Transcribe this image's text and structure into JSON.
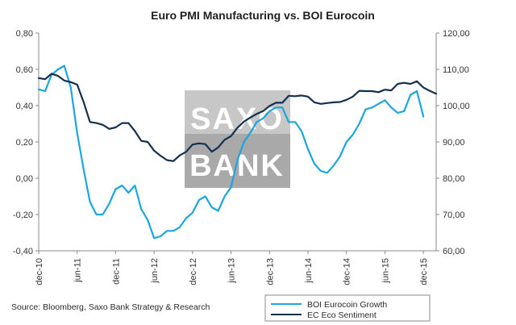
{
  "chart_data": {
    "type": "line",
    "title": "Euro PMI Manufacturing vs. BOI Eurocoin",
    "source": "Source: Bloomberg, Saxo Bank Strategy & Research",
    "watermark": [
      "SAXO",
      "BANK"
    ],
    "x_ticks": [
      "dec-10",
      "jun-11",
      "dec-11",
      "jun-12",
      "dec-12",
      "jun-13",
      "dec-13",
      "jun-14",
      "dec-14",
      "jun-15",
      "dec-15"
    ],
    "x_range": [
      0,
      62
    ],
    "y_left": {
      "range": [
        -0.4,
        0.8
      ],
      "ticks": [
        -0.4,
        -0.2,
        0.0,
        0.2,
        0.4,
        0.6,
        0.8
      ],
      "tick_labels": [
        "-0,40",
        "-0,20",
        "0,00",
        "0,20",
        "0,40",
        "0,60",
        "0,80"
      ]
    },
    "y_right": {
      "range": [
        60,
        120
      ],
      "ticks": [
        60,
        70,
        80,
        90,
        100,
        110,
        120
      ],
      "tick_labels": [
        "60,00",
        "70,00",
        "80,00",
        "90,00",
        "100,00",
        "110,00",
        "120,00"
      ]
    },
    "series": [
      {
        "name": "BOI Eurocoin Growth",
        "axis": "left",
        "color": "#1ba6e0",
        "x": [
          0,
          1,
          2,
          3,
          4,
          5,
          6,
          7,
          8,
          9,
          10,
          11,
          12,
          13,
          14,
          15,
          16,
          17,
          18,
          19,
          20,
          21,
          22,
          23,
          24,
          25,
          26,
          27,
          28,
          29,
          30,
          31,
          32,
          33,
          34,
          35,
          36,
          37,
          38,
          39,
          40,
          41,
          42,
          43,
          44,
          45,
          46,
          47,
          48,
          49,
          50,
          51,
          52,
          53,
          54,
          55,
          56,
          57,
          58,
          59,
          60
        ],
        "values": [
          0.49,
          0.48,
          0.57,
          0.6,
          0.62,
          0.5,
          0.25,
          0.05,
          -0.13,
          -0.2,
          -0.2,
          -0.14,
          -0.06,
          -0.04,
          -0.08,
          -0.04,
          -0.17,
          -0.23,
          -0.33,
          -0.32,
          -0.29,
          -0.29,
          -0.27,
          -0.22,
          -0.19,
          -0.12,
          -0.1,
          -0.16,
          -0.18,
          -0.1,
          -0.05,
          0.1,
          0.2,
          0.25,
          0.31,
          0.33,
          0.37,
          0.39,
          0.39,
          0.31,
          0.31,
          0.26,
          0.16,
          0.08,
          0.04,
          0.03,
          0.07,
          0.12,
          0.2,
          0.24,
          0.3,
          0.38,
          0.39,
          0.41,
          0.43,
          0.39,
          0.36,
          0.37,
          0.46,
          0.48,
          0.34
        ]
      },
      {
        "name": "EC Eco Sentiment",
        "axis": "right",
        "color": "#15304f",
        "x": [
          0,
          1,
          2,
          3,
          4,
          5,
          6,
          7,
          8,
          9,
          10,
          11,
          12,
          13,
          14,
          15,
          16,
          17,
          18,
          19,
          20,
          21,
          22,
          23,
          24,
          25,
          26,
          27,
          28,
          29,
          30,
          31,
          32,
          33,
          34,
          35,
          36,
          37,
          38,
          39,
          40,
          41,
          42,
          43,
          44,
          45,
          46,
          47,
          48,
          49,
          50,
          51,
          52,
          53,
          54,
          55,
          56,
          57,
          58,
          59,
          60,
          61,
          62
        ],
        "values": [
          107.6,
          107.3,
          108.8,
          108.2,
          106.9,
          106.5,
          105.8,
          101.0,
          95.5,
          95.2,
          94.7,
          93.6,
          94.0,
          95.2,
          95.2,
          93.0,
          90.3,
          90.0,
          87.6,
          86.2,
          85.0,
          84.7,
          86.3,
          87.3,
          89.3,
          89.6,
          89.4,
          87.3,
          88.5,
          90.6,
          91.6,
          93.9,
          95.6,
          96.7,
          97.7,
          98.5,
          99.9,
          100.8,
          100.8,
          102.7,
          102.6,
          102.8,
          102.5,
          100.9,
          100.5,
          100.7,
          100.9,
          101.0,
          101.6,
          102.5,
          104.1,
          104.0,
          104.0,
          103.7,
          104.4,
          104.2,
          106.0,
          106.3,
          106.0,
          106.7,
          105.0,
          104.1,
          103.3
        ]
      }
    ],
    "legend_position": "bottom-right"
  }
}
